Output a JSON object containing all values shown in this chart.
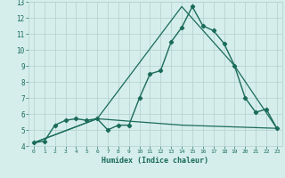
{
  "xlabel": "Humidex (Indice chaleur)",
  "ylabel": "",
  "background_color": "#d5eeeb",
  "grid_color": "#b8d4d0",
  "line_color": "#1a6b5a",
  "xlim": [
    -0.5,
    23.5
  ],
  "ylim": [
    4,
    13
  ],
  "xticks": [
    0,
    1,
    2,
    3,
    4,
    5,
    6,
    7,
    8,
    9,
    10,
    11,
    12,
    13,
    14,
    15,
    16,
    17,
    18,
    19,
    20,
    21,
    22,
    23
  ],
  "yticks": [
    4,
    5,
    6,
    7,
    8,
    9,
    10,
    11,
    12,
    13
  ],
  "series": [
    {
      "x": [
        0,
        1,
        2,
        3,
        4,
        5,
        6,
        7,
        8,
        9,
        10,
        11,
        12,
        13,
        14,
        15,
        16,
        17,
        18,
        19,
        20,
        21,
        22,
        23
      ],
      "y": [
        4.2,
        4.3,
        5.3,
        5.6,
        5.7,
        5.6,
        5.7,
        5.0,
        5.3,
        5.3,
        7.0,
        8.5,
        8.7,
        10.5,
        11.4,
        12.7,
        11.5,
        11.2,
        10.4,
        9.0,
        7.0,
        6.1,
        6.3,
        5.1
      ],
      "marker": "D",
      "markersize": 2.2,
      "linewidth": 1.0
    },
    {
      "x": [
        0,
        6,
        14,
        19,
        23
      ],
      "y": [
        4.2,
        5.7,
        12.7,
        9.0,
        5.1
      ],
      "marker": null,
      "markersize": 0,
      "linewidth": 0.9
    },
    {
      "x": [
        0,
        6,
        14,
        23
      ],
      "y": [
        4.2,
        5.7,
        5.3,
        5.1
      ],
      "marker": null,
      "markersize": 0,
      "linewidth": 0.9
    }
  ]
}
